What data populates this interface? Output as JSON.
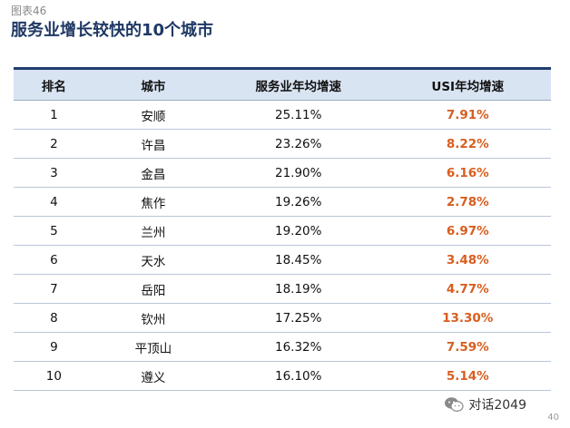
{
  "figure_label": "图表46",
  "title": "服务业增长较快的10个城市",
  "table": {
    "headers": [
      "排名",
      "城市",
      "服务业年均增速",
      "USI年均增速"
    ],
    "rows": [
      [
        "1",
        "安顺",
        "25.11%",
        "7.91%"
      ],
      [
        "2",
        "许昌",
        "23.26%",
        "8.22%"
      ],
      [
        "3",
        "金昌",
        "21.90%",
        "6.16%"
      ],
      [
        "4",
        "焦作",
        "19.26%",
        "2.78%"
      ],
      [
        "5",
        "兰州",
        "19.20%",
        "6.97%"
      ],
      [
        "6",
        "天水",
        "18.45%",
        "3.48%"
      ],
      [
        "7",
        "岳阳",
        "18.19%",
        "4.77%"
      ],
      [
        "8",
        "钦州",
        "17.25%",
        "13.30%"
      ],
      [
        "9",
        "平顶山",
        "16.32%",
        "7.59%"
      ],
      [
        "10",
        "遵义",
        "16.10%",
        "5.14%"
      ]
    ]
  },
  "watermark": {
    "text": "对话2049",
    "icon": "wechat-icon"
  },
  "page_number": "40",
  "colors": {
    "title": "#1f3864",
    "header_bg": "#d9e4f2",
    "header_border": "#1f3e6e",
    "usi_value": "#d85e1f"
  }
}
